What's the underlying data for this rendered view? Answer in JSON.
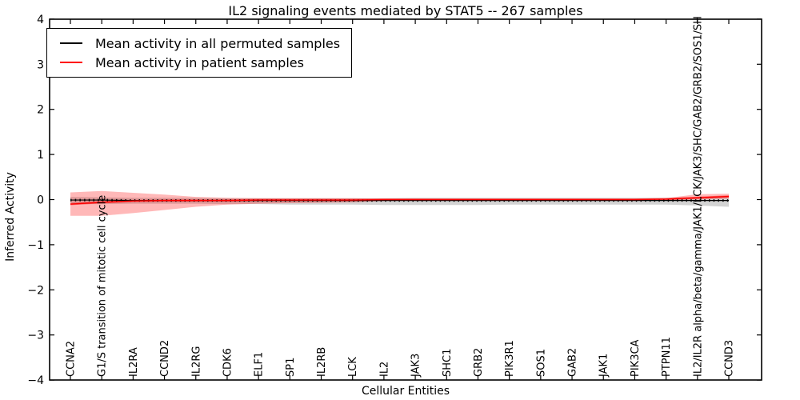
{
  "chart_data": {
    "type": "line",
    "title": "IL2 signaling events mediated by STAT5 -- 267 samples",
    "xlabel": "Cellular Entities",
    "ylabel": "Inferred Activity",
    "ylim": [
      -4,
      4
    ],
    "yticks": [
      -4,
      -3,
      -2,
      -1,
      0,
      1,
      2,
      3,
      4
    ],
    "grid": false,
    "legend_position": "upper left",
    "categories": [
      "CCNA2",
      "G1/S transition of mitotic cell cycle",
      "IL2RA",
      "CCND2",
      "IL2RG",
      "CDK6",
      "ELF1",
      "SP1",
      "IL2RB",
      "LCK",
      "IL2",
      "JAK3",
      "SHC1",
      "GRB2",
      "PIK3R1",
      "SOS1",
      "GAB2",
      "JAK1",
      "PIK3CA",
      "PTPN11",
      "IL2/IL2R alpha/beta/gamma/JAK1/LCK/JAK3/SHC/GAB2/GRB2/SOS1/SH",
      "CCND3"
    ],
    "series": [
      {
        "name": "Mean activity in all permuted samples",
        "color": "#000000",
        "band_color": "rgba(110,110,110,0.30)",
        "values": [
          -0.01,
          -0.01,
          -0.02,
          -0.02,
          -0.02,
          -0.02,
          -0.02,
          -0.02,
          -0.02,
          -0.02,
          -0.02,
          -0.02,
          -0.02,
          -0.02,
          -0.02,
          -0.02,
          -0.02,
          -0.02,
          -0.02,
          -0.02,
          -0.02,
          -0.02
        ],
        "band_upper": [
          0.06,
          0.05,
          0.04,
          0.04,
          0.04,
          0.03,
          0.03,
          0.03,
          0.03,
          0.03,
          0.03,
          0.04,
          0.04,
          0.04,
          0.04,
          0.04,
          0.04,
          0.04,
          0.04,
          0.04,
          0.05,
          0.06
        ],
        "band_lower": [
          -0.1,
          -0.1,
          -0.09,
          -0.09,
          -0.09,
          -0.1,
          -0.1,
          -0.11,
          -0.11,
          -0.11,
          -0.12,
          -0.12,
          -0.12,
          -0.12,
          -0.11,
          -0.11,
          -0.11,
          -0.11,
          -0.11,
          -0.11,
          -0.13,
          -0.16
        ]
      },
      {
        "name": "Mean activity in patient samples",
        "color": "#ff0000",
        "band_color": "rgba(255,0,0,0.28)",
        "values": [
          -0.1,
          -0.06,
          -0.03,
          -0.02,
          -0.02,
          -0.02,
          -0.01,
          -0.01,
          -0.01,
          -0.01,
          0.0,
          0.0,
          0.0,
          0.0,
          0.0,
          0.0,
          0.0,
          0.0,
          0.0,
          0.01,
          0.04,
          0.07
        ],
        "band_upper": [
          0.16,
          0.19,
          0.15,
          0.11,
          0.06,
          0.04,
          0.03,
          0.03,
          0.03,
          0.03,
          0.02,
          0.02,
          0.02,
          0.02,
          0.02,
          0.02,
          0.02,
          0.02,
          0.02,
          0.03,
          0.12,
          0.13
        ],
        "band_lower": [
          -0.36,
          -0.36,
          -0.3,
          -0.23,
          -0.16,
          -0.11,
          -0.09,
          -0.08,
          -0.07,
          -0.06,
          -0.03,
          -0.02,
          -0.02,
          -0.02,
          -0.02,
          -0.02,
          -0.02,
          -0.02,
          -0.02,
          -0.01,
          0.0,
          0.02
        ]
      }
    ]
  }
}
